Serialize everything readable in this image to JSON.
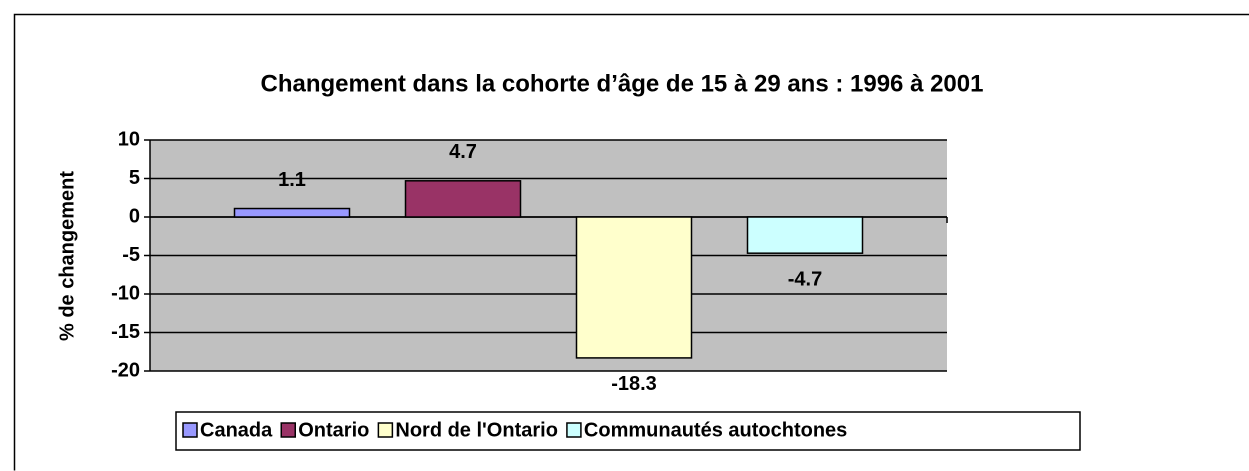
{
  "chart_data": {
    "type": "bar",
    "title": "Changement dans la cohorte d’âge de 15 à 29 ans :  1996 à 2001",
    "y_label": "% de changement",
    "categories": [
      null
    ],
    "series": [
      {
        "name": "Canada",
        "color": "#9999ff",
        "values": [
          1.1
        ]
      },
      {
        "name": "Ontario",
        "color": "#993366",
        "values": [
          4.7
        ]
      },
      {
        "name": "Nord de l'Ontario",
        "color": "#ffffcc",
        "values": [
          -18.3
        ]
      },
      {
        "name": "Communautés autochtones",
        "color": "#ccffff",
        "values": [
          -4.7
        ]
      }
    ],
    "ylim": [
      -20,
      10
    ],
    "yticks": [
      10,
      5,
      0,
      -5,
      -10,
      -15,
      -20
    ],
    "grid": true,
    "legend": "bottom",
    "plot_background": "#c0c0c0"
  }
}
